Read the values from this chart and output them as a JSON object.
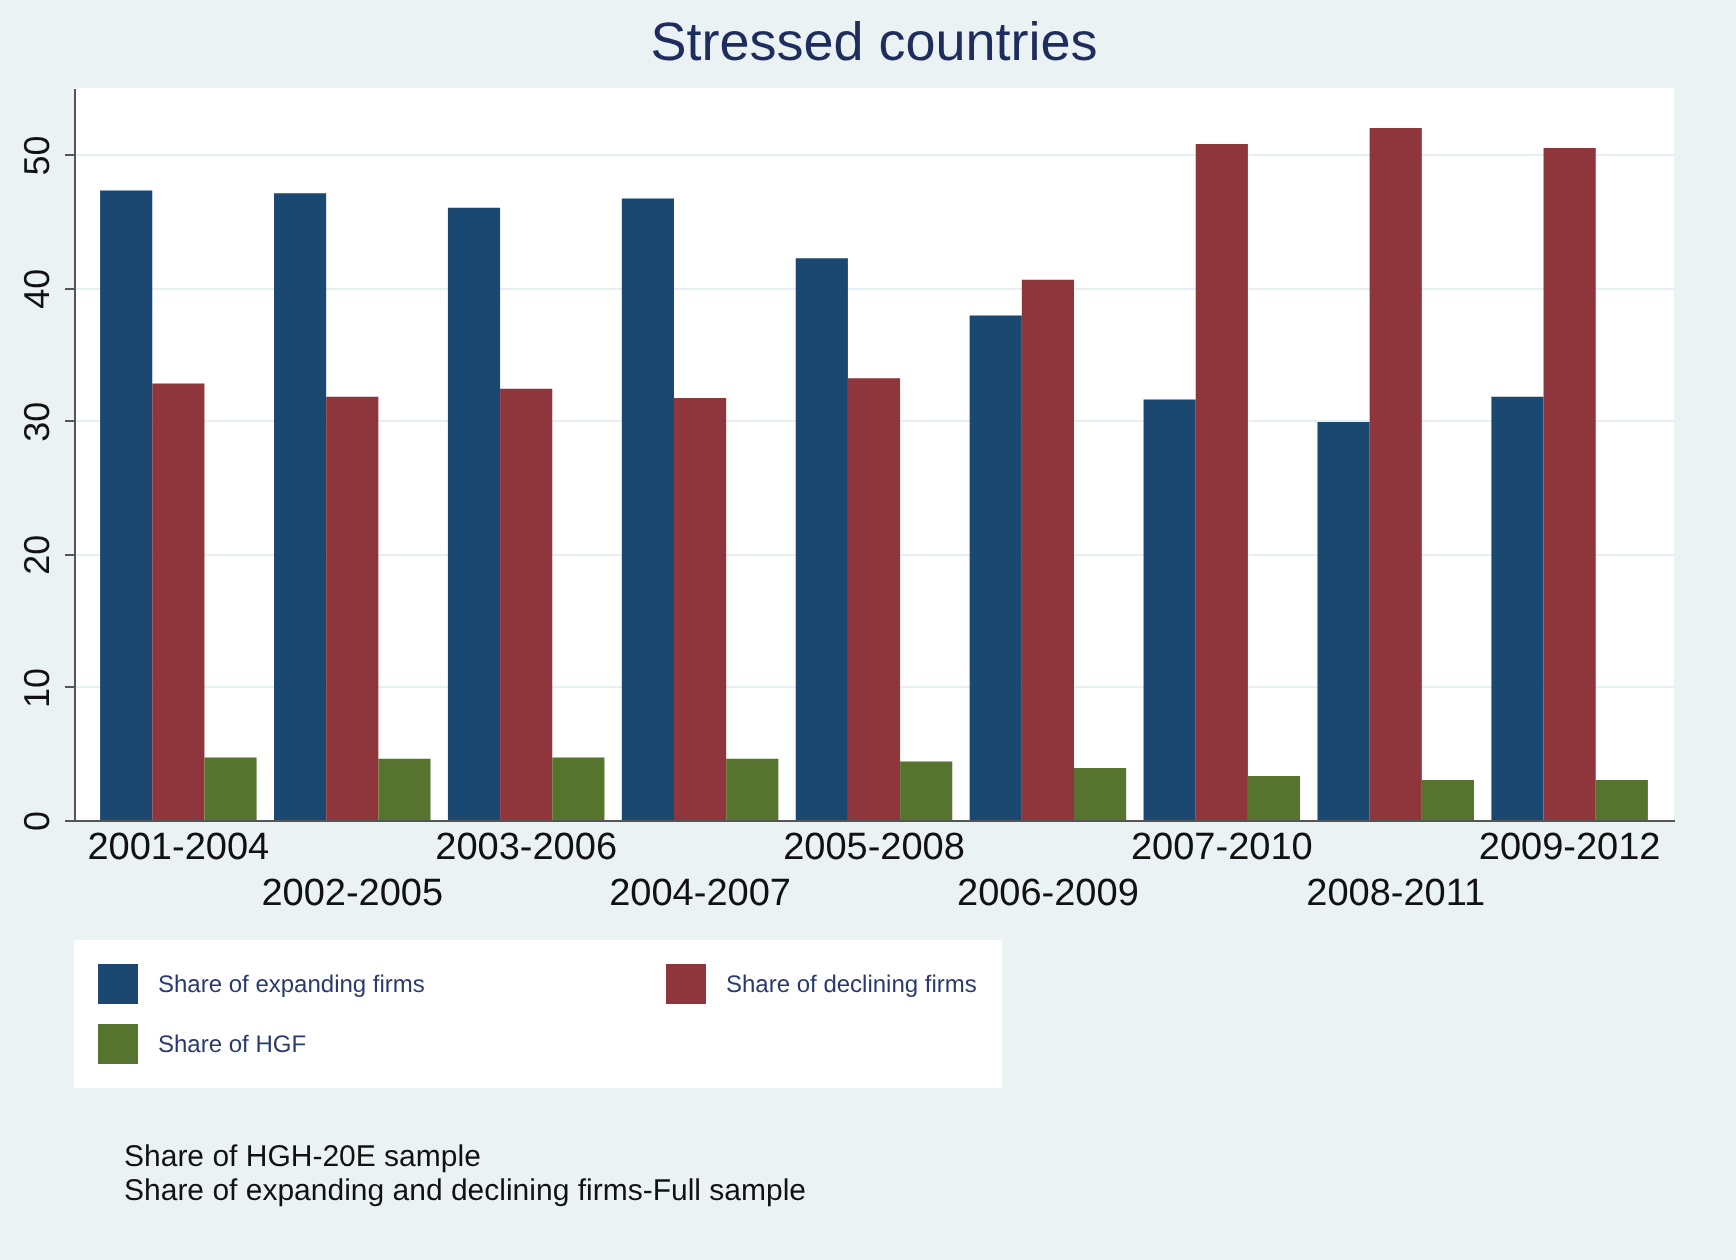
{
  "chart_data": {
    "type": "bar",
    "title": "Stressed countries",
    "categories": [
      "2001-2004",
      "2002-2005",
      "2003-2006",
      "2004-2007",
      "2005-2008",
      "2006-2009",
      "2007-2010",
      "2008-2011",
      "2009-2012"
    ],
    "series": [
      {
        "name": "Share of expanding firms",
        "color": "#1b4870",
        "values": [
          47.3,
          47.1,
          46.0,
          46.7,
          42.2,
          37.9,
          31.6,
          29.9,
          31.8
        ]
      },
      {
        "name": "Share of declining firms",
        "color": "#8f353c",
        "values": [
          32.8,
          31.8,
          32.4,
          31.7,
          33.2,
          40.6,
          50.8,
          52.0,
          50.5
        ]
      },
      {
        "name": "Share of HGF",
        "color": "#56742d",
        "values": [
          4.7,
          4.6,
          4.7,
          4.6,
          4.4,
          3.9,
          3.3,
          3.0,
          3.0
        ]
      }
    ],
    "ylim": [
      0,
      55
    ],
    "yticks": [
      0,
      10,
      20,
      30,
      40,
      50
    ],
    "grid": "y",
    "legend": "bottom",
    "annotations": [
      "Share of HGH-20E sample",
      "Share of expanding and declining firms-Full sample"
    ]
  }
}
